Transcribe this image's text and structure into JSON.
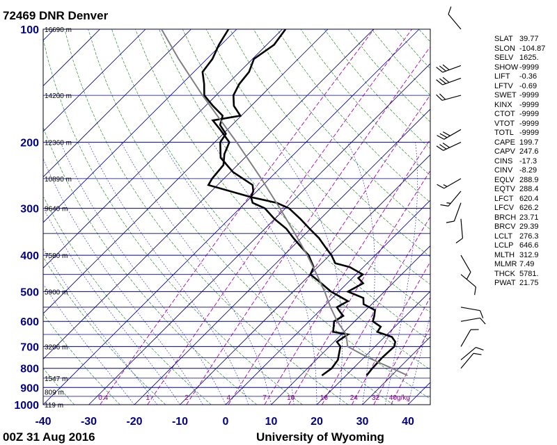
{
  "title": "72469 DNR Denver",
  "footer_left": "00Z 31 Aug 2016",
  "footer_right": "University of Wyoming",
  "colors": {
    "isobar": "#00008b",
    "isotherm": "#00008b",
    "dry_adiabat": "#2f8f2f",
    "moist_adiabat": "#4040d0",
    "mixing_ratio": "#aa00aa",
    "profile": "#000000",
    "parcel": "#808080"
  },
  "chart_data": {
    "type": "line",
    "title": "72469 DNR Denver",
    "xlabel": "",
    "ylabel": "",
    "x_axis": {
      "type": "skew-T temperature",
      "range": [
        -40,
        45
      ],
      "ticks": [
        "-40",
        "-30",
        "-20",
        "-10",
        "0",
        "10",
        "20",
        "30",
        "40"
      ]
    },
    "y_axis": {
      "type": "log pressure",
      "range": [
        1000,
        100
      ],
      "ticks": [
        100,
        200,
        300,
        400,
        500,
        600,
        700,
        800,
        900,
        1000
      ]
    },
    "grid": true,
    "height_labels": [
      {
        "p": 100,
        "label": "16690 m"
      },
      {
        "p": 150,
        "label": "14200 m"
      },
      {
        "p": 200,
        "label": "12360 m"
      },
      {
        "p": 250,
        "label": "10890 m"
      },
      {
        "p": 300,
        "label": "9640 m"
      },
      {
        "p": 400,
        "label": "7580 m"
      },
      {
        "p": 500,
        "label": "5900 m"
      },
      {
        "p": 700,
        "label": "3206 m"
      },
      {
        "p": 850,
        "label": "1547 m"
      },
      {
        "p": 925,
        "label": "809 m"
      },
      {
        "p": 1000,
        "label": "119 m"
      }
    ],
    "mixing_ratio_labels": [
      "0.4",
      "1",
      "2",
      "4",
      "7",
      "10",
      "16",
      "24",
      "32",
      "40g/kg"
    ],
    "series": [
      {
        "role": "temperature",
        "points": [
          [
            836,
            24.5
          ],
          [
            800,
            24.2
          ],
          [
            750,
            24.0
          ],
          [
            700,
            24.2
          ],
          [
            680,
            23.4
          ],
          [
            660,
            21.6
          ],
          [
            640,
            17.3
          ],
          [
            620,
            16.9
          ],
          [
            600,
            14.0
          ],
          [
            580,
            13.1
          ],
          [
            560,
            12.0
          ],
          [
            540,
            8.2
          ],
          [
            520,
            6.8
          ],
          [
            500,
            2.0
          ],
          [
            475,
            3.5
          ],
          [
            460,
            1.3
          ],
          [
            450,
            1.5
          ],
          [
            430,
            -3.0
          ],
          [
            420,
            -7.0
          ],
          [
            400,
            -9.6
          ],
          [
            380,
            -12.8
          ],
          [
            360,
            -16.1
          ],
          [
            340,
            -20.2
          ],
          [
            320,
            -24.4
          ],
          [
            300,
            -29.2
          ],
          [
            290,
            -33.1
          ],
          [
            280,
            -40.0
          ],
          [
            260,
            -52.0
          ],
          [
            250,
            -52.6
          ],
          [
            230,
            -53.1
          ],
          [
            215,
            -55.3
          ],
          [
            200,
            -56.8
          ],
          [
            185,
            -61.6
          ],
          [
            175,
            -65.2
          ],
          [
            170,
            -60.2
          ],
          [
            160,
            -63.8
          ],
          [
            150,
            -66.2
          ],
          [
            140,
            -67.4
          ],
          [
            130,
            -67.9
          ],
          [
            120,
            -69.7
          ],
          [
            110,
            -68.4
          ],
          [
            100,
            -69.3
          ]
        ]
      },
      {
        "role": "dewpoint",
        "points": [
          [
            836,
            14.7
          ],
          [
            800,
            15.3
          ],
          [
            760,
            14.8
          ],
          [
            700,
            12.4
          ],
          [
            680,
            10.6
          ],
          [
            650,
            11.4
          ],
          [
            640,
            7.6
          ],
          [
            620,
            6.6
          ],
          [
            600,
            5.5
          ],
          [
            580,
            6.3
          ],
          [
            565,
            4.6
          ],
          [
            550,
            3.0
          ],
          [
            530,
            4.1
          ],
          [
            500,
            -1.7
          ],
          [
            470,
            -6.5
          ],
          [
            450,
            -10.0
          ],
          [
            430,
            -10.9
          ],
          [
            400,
            -14.6
          ],
          [
            380,
            -18.1
          ],
          [
            360,
            -21.7
          ],
          [
            340,
            -25.3
          ],
          [
            320,
            -30.1
          ],
          [
            300,
            -34.5
          ],
          [
            290,
            -38.4
          ],
          [
            280,
            -40.0
          ],
          [
            270,
            -40.8
          ],
          [
            260,
            -42.3
          ],
          [
            240,
            -49.5
          ],
          [
            220,
            -55.3
          ],
          [
            200,
            -58.8
          ],
          [
            190,
            -59.4
          ],
          [
            180,
            -62.6
          ],
          [
            170,
            -64.1
          ],
          [
            160,
            -68.4
          ],
          [
            150,
            -72.6
          ],
          [
            140,
            -75.1
          ],
          [
            130,
            -78.1
          ],
          [
            120,
            -78.8
          ],
          [
            110,
            -80.5
          ],
          [
            100,
            -81.8
          ]
        ]
      },
      {
        "role": "parcel",
        "points": [
          [
            836,
            33.5
          ],
          [
            800,
            28.5
          ],
          [
            750,
            21.0
          ],
          [
            700,
            14.0
          ],
          [
            650,
            11.0
          ],
          [
            600,
            6.2
          ],
          [
            550,
            1.6
          ],
          [
            500,
            -3.1
          ],
          [
            450,
            -8.6
          ],
          [
            400,
            -14.9
          ],
          [
            350,
            -22.4
          ],
          [
            300,
            -31.2
          ],
          [
            250,
            -41.8
          ],
          [
            200,
            -55.2
          ],
          [
            150,
            -73.0
          ],
          [
            120,
            -86.2
          ],
          [
            100,
            -96.5
          ]
        ]
      }
    ]
  },
  "indices": [
    {
      "key": "SLAT",
      "value": "39.77"
    },
    {
      "key": "SLON",
      "value": "-104.87"
    },
    {
      "key": "SELV",
      "value": "1625."
    },
    {
      "key": "SHOW",
      "value": "-9999"
    },
    {
      "key": "LIFT",
      "value": "-0.36"
    },
    {
      "key": "LFTV",
      "value": "-0.69"
    },
    {
      "key": "SWET",
      "value": "-9999"
    },
    {
      "key": "KINX",
      "value": "-9999"
    },
    {
      "key": "CTOT",
      "value": "-9999"
    },
    {
      "key": "VTOT",
      "value": "-9999"
    },
    {
      "key": "TOTL",
      "value": "-9999"
    },
    {
      "key": "CAPE",
      "value": "199.7"
    },
    {
      "key": "CAPV",
      "value": "247.6"
    },
    {
      "key": "CINS",
      "value": "-17.3"
    },
    {
      "key": "CINV",
      "value": "-8.29"
    },
    {
      "key": "EQLV",
      "value": "288.9"
    },
    {
      "key": "EQTV",
      "value": "288.4"
    },
    {
      "key": "LFCT",
      "value": "620.4"
    },
    {
      "key": "LFCV",
      "value": "626.2"
    },
    {
      "key": "BRCH",
      "value": "23.71"
    },
    {
      "key": "BRCV",
      "value": "29.39"
    },
    {
      "key": "LCLT",
      "value": "276.3"
    },
    {
      "key": "LCLP",
      "value": "646.6"
    },
    {
      "key": "MLTH",
      "value": "312.9"
    },
    {
      "key": "MLMR",
      "value": "7.49"
    },
    {
      "key": "THCK",
      "value": "5781."
    },
    {
      "key": "PWAT",
      "value": "21.75"
    }
  ],
  "wind_barbs": [
    {
      "p": 100,
      "dir": 320,
      "kt": 10
    },
    {
      "p": 125,
      "dir": 250,
      "kt": 30
    },
    {
      "p": 135,
      "dir": 250,
      "kt": 30
    },
    {
      "p": 150,
      "dir": 255,
      "kt": 20
    },
    {
      "p": 185,
      "dir": 240,
      "kt": 30
    },
    {
      "p": 200,
      "dir": 245,
      "kt": 30
    },
    {
      "p": 250,
      "dir": 240,
      "kt": 15
    },
    {
      "p": 270,
      "dir": 220,
      "kt": 15
    },
    {
      "p": 290,
      "dir": 200,
      "kt": 10
    },
    {
      "p": 320,
      "dir": 175,
      "kt": 10
    },
    {
      "p": 400,
      "dir": 150,
      "kt": 10
    },
    {
      "p": 450,
      "dir": 130,
      "kt": 10
    },
    {
      "p": 550,
      "dir": 100,
      "kt": 10
    },
    {
      "p": 600,
      "dir": 80,
      "kt": 10
    },
    {
      "p": 700,
      "dir": 30,
      "kt": 10
    },
    {
      "p": 760,
      "dir": 50,
      "kt": 10
    },
    {
      "p": 800,
      "dir": 40,
      "kt": 10
    }
  ]
}
